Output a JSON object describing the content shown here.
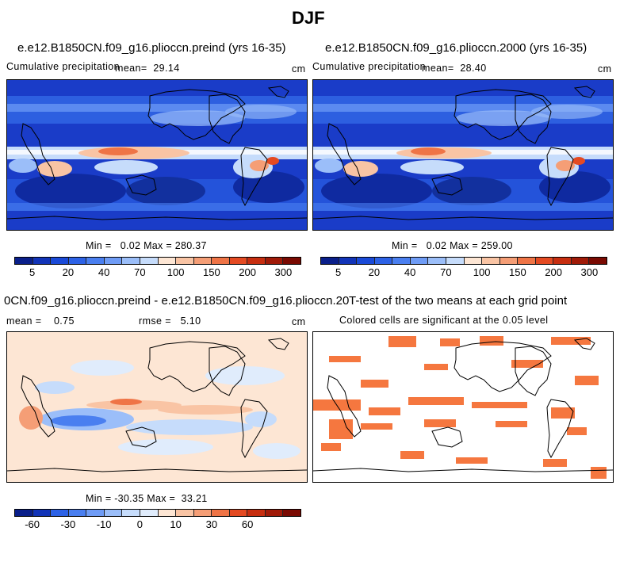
{
  "figure_title": "DJF",
  "panels": {
    "top_left": {
      "title": "e.e12.B1850CN.f09_g16.plioccn.preind (yrs 16-35)",
      "variable": "Cumulative precipitation",
      "mean_label": "mean=",
      "mean_value": "29.14",
      "units": "cm",
      "min_label": "Min =",
      "min_value": "0.02",
      "max_label": "Max =",
      "max_value": "280.37"
    },
    "top_right": {
      "title": "e.e12.B1850CN.f09_g16.plioccn.2000 (yrs 16-35)",
      "variable": "Cumulative precipitation",
      "mean_label": "mean=",
      "mean_value": "28.40",
      "units": "cm",
      "min_label": "Min =",
      "min_value": "0.02",
      "max_label": "Max =",
      "max_value": "259.00"
    },
    "bottom_left": {
      "title": "0CN.f09_g16.plioccn.preind - e.e12.B1850CN.f09_g16.plioccn.2000",
      "mean_label": "mean =",
      "mean_value": "0.75",
      "rmse_label": "rmse =",
      "rmse_value": "5.10",
      "units": "cm",
      "min_label": "Min =",
      "min_value": "-30.35",
      "max_label": "Max =",
      "max_value": "33.21"
    },
    "bottom_right": {
      "title": "T-test of the two means at each grid point",
      "subtitle": "Colored cells are significant at the 0.05 level"
    }
  },
  "colorbars": {
    "precip": {
      "colors": [
        "#0a1f8a",
        "#1234b8",
        "#1a4ad8",
        "#2d62e6",
        "#4a7ff0",
        "#6f9cf6",
        "#9bbef9",
        "#c6dcfb",
        "#fde6d4",
        "#f9c4a4",
        "#f59e76",
        "#ef7446",
        "#e44a22",
        "#c72e10",
        "#a01a08",
        "#7a0a02"
      ],
      "tick_labels": [
        "5",
        "20",
        "40",
        "70",
        "100",
        "150",
        "200",
        "300"
      ]
    },
    "diff": {
      "colors": [
        "#0a1f8a",
        "#1234b8",
        "#2d62e6",
        "#4a7ff0",
        "#6f9cf6",
        "#9bbef9",
        "#c6dcfb",
        "#e0ecfc",
        "#fde6d4",
        "#f9c4a4",
        "#f59e76",
        "#ef7446",
        "#e44a22",
        "#c72e10",
        "#a01a08",
        "#7a0a02"
      ],
      "tick_labels": [
        "-60",
        "-30",
        "-10",
        "0",
        "10",
        "30",
        "60"
      ]
    }
  },
  "colors": {
    "ttest_significant": "#f5773f",
    "precip_dry": "#1a3cc8",
    "precip_wet": "#e8502a",
    "diff_background": "#fde6d4"
  }
}
